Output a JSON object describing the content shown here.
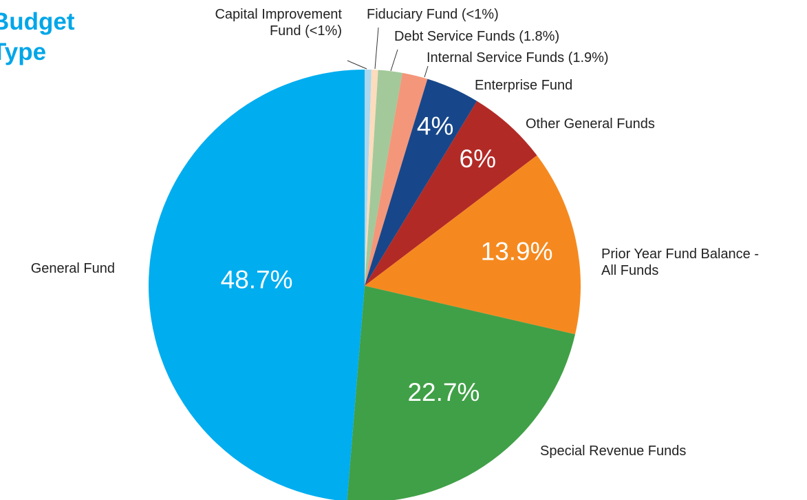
{
  "chart_data": {
    "type": "pie",
    "title": "Budget Type",
    "categories": [
      "Capital Improvement Fund (<1%)",
      "Fiduciary Fund (<1%)",
      "Debt Service Funds (1.8%)",
      "Internal Service Funds (1.9%)",
      "Enterprise Fund",
      "Other General Funds",
      "Prior Year Fund Balance - All Funds",
      "Special Revenue Funds",
      "General Fund"
    ],
    "values": [
      0.5,
      0.5,
      1.8,
      1.9,
      4,
      6,
      13.9,
      22.7,
      48.7
    ],
    "value_labels": [
      null,
      null,
      null,
      null,
      "4%",
      "6%",
      "13.9%",
      "22.7%",
      "48.7%"
    ],
    "colors": [
      "#a9d8f0",
      "#fbdcbc",
      "#a3c99a",
      "#f4967a",
      "#17478a",
      "#b22a26",
      "#f5891f",
      "#40a047",
      "#00adef"
    ]
  }
}
